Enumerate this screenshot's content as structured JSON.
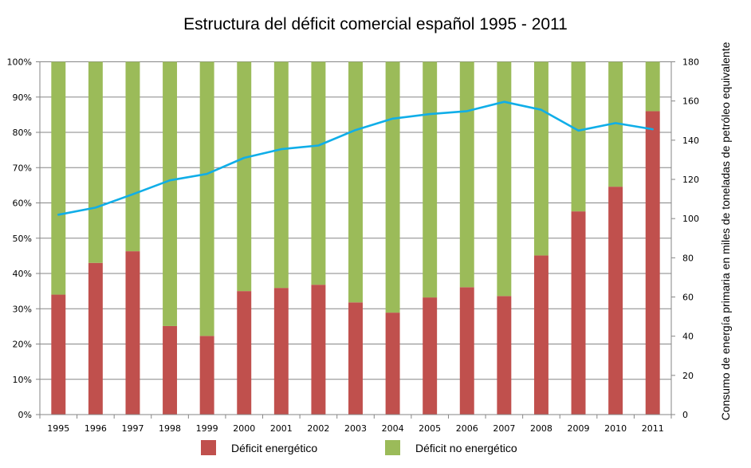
{
  "chart_data": {
    "type": "bar",
    "subtype": "stacked-100-percent-with-line-secondary-axis",
    "title": "Estructura del déficit comercial español 1995 - 2011",
    "xlabel": "",
    "ylabel": "",
    "ylabel_right": "Consumo de energía primaria en miles de toneladas de petróleo equivalente",
    "categories": [
      "1995",
      "1996",
      "1997",
      "1998",
      "1999",
      "2000",
      "2001",
      "2002",
      "2003",
      "2004",
      "2005",
      "2006",
      "2007",
      "2008",
      "2009",
      "2010",
      "2011"
    ],
    "ylim": [
      0,
      100
    ],
    "ylim_right": [
      0,
      180
    ],
    "yticks": [
      "0%",
      "10%",
      "20%",
      "30%",
      "40%",
      "50%",
      "60%",
      "70%",
      "80%",
      "90%",
      "100%"
    ],
    "yticks_right": [
      "0",
      "20",
      "40",
      "60",
      "80",
      "100",
      "120",
      "140",
      "160",
      "180"
    ],
    "grid": true,
    "series": [
      {
        "name": "Déficit energético",
        "type": "bar",
        "axis": "left",
        "color": "#C0504D",
        "values": [
          34.0,
          43.0,
          46.3,
          25.1,
          22.3,
          35.0,
          35.9,
          36.8,
          31.8,
          28.9,
          33.2,
          36.1,
          33.6,
          45.1,
          57.6,
          64.6,
          86.0
        ]
      },
      {
        "name": "Déficit no energético",
        "type": "bar",
        "axis": "left",
        "color": "#9BBB59",
        "values": [
          66.0,
          57.0,
          53.7,
          74.9,
          77.7,
          65.0,
          64.1,
          63.2,
          68.2,
          71.1,
          66.8,
          63.9,
          66.4,
          54.9,
          42.4,
          35.4,
          14.0
        ]
      },
      {
        "name": "Consumo de energía primaria",
        "type": "line",
        "axis": "right",
        "color": "#10AEE8",
        "show_in_legend": false,
        "values": [
          102.0,
          105.6,
          112.4,
          119.5,
          122.8,
          131.0,
          135.4,
          137.3,
          145.2,
          151.0,
          153.3,
          154.8,
          159.6,
          155.5,
          144.9,
          148.7,
          145.6
        ]
      }
    ],
    "legend": {
      "position": "bottom",
      "entries": [
        "Déficit energético",
        "Déficit no energético"
      ]
    }
  },
  "style": {
    "grid_color": "#868686",
    "axis_color": "#868686"
  }
}
